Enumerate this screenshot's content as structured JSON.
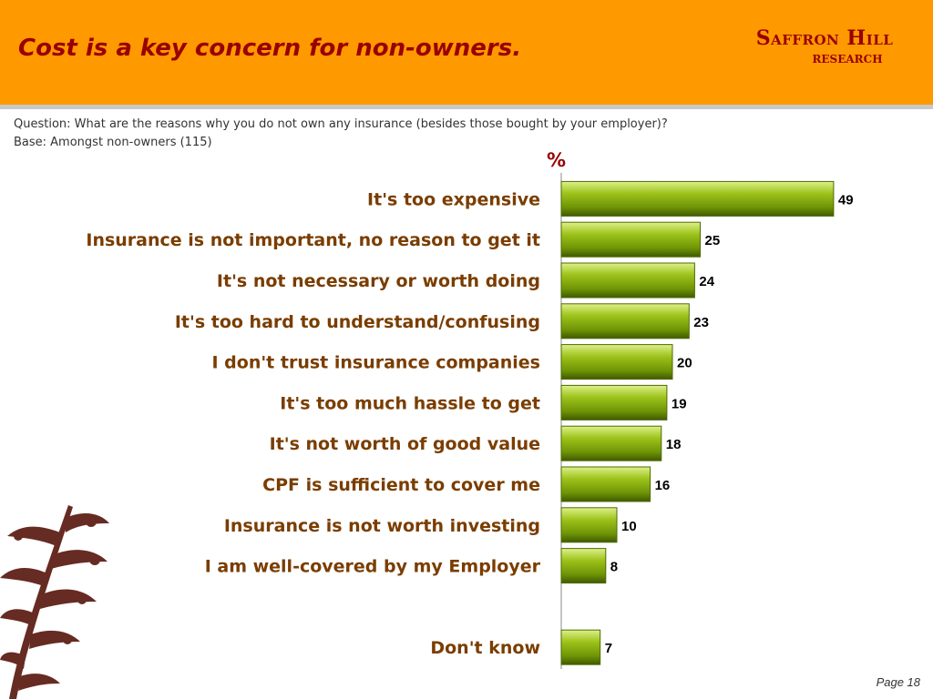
{
  "header": {
    "title": "Cost is a key concern for non-owners.",
    "logo_line1": "Saffron Hill",
    "logo_line2": "research",
    "bg_color": "#ff9900",
    "title_color": "#990000"
  },
  "question": "Question: What are the reasons why you do not own any insurance (besides those bought by your employer)?",
  "base": "Base:  Amongst non-owners (115)",
  "unit_label": "%",
  "chart_data": {
    "type": "bar",
    "orientation": "horizontal",
    "categories": [
      "It's too expensive",
      "Insurance is not important, no reason to get it",
      "It's not necessary or worth doing",
      "It's too hard to understand/confusing",
      "I don't trust insurance companies",
      "It's too much hassle to get",
      "It's not worth of good value",
      "CPF is sufficient to cover me",
      "Insurance is not worth investing",
      "I am well-covered by my Employer",
      "",
      "Don't know"
    ],
    "values": [
      49,
      25,
      24,
      23,
      20,
      19,
      18,
      16,
      10,
      8,
      null,
      7
    ],
    "ylabel": "%",
    "xlim": [
      0,
      50
    ],
    "grid": false,
    "bar_color": "#8fb214",
    "label_color": "#7a3d00"
  },
  "footer": {
    "page": "Page 18"
  }
}
